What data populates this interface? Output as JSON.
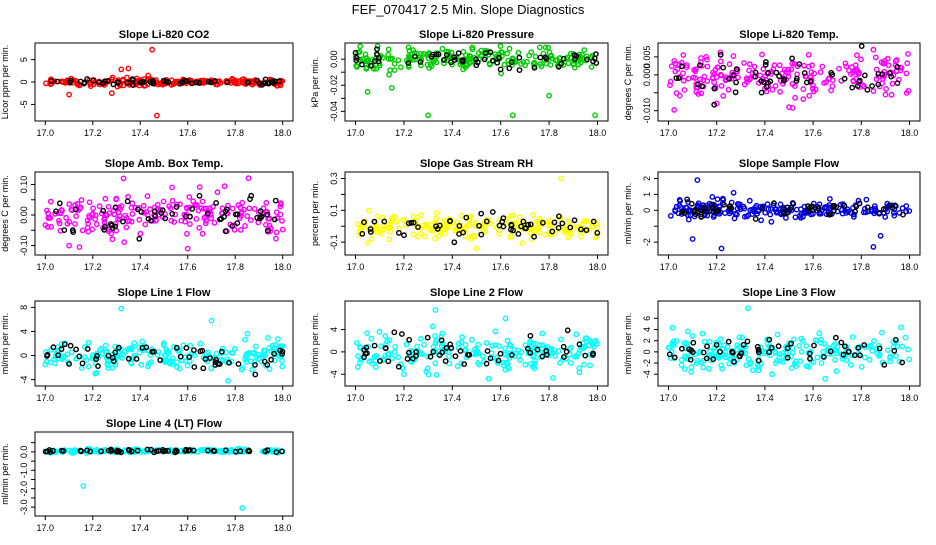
{
  "page": {
    "title": "FEF_070417  2.5 Min. Slope Diagnostics"
  },
  "chart_data": [
    {
      "type": "scatter",
      "title": "Slope Li-820 CO2",
      "ylabel": "Licor ppm per min.",
      "xlim": [
        17.0,
        18.0
      ],
      "ylim": [
        -8,
        8
      ],
      "xticks": [
        "17.0",
        "17.2",
        "17.4",
        "17.6",
        "17.8",
        "18.0"
      ],
      "yticks": [
        -5,
        0,
        5
      ],
      "ytick_labels": [
        "-5",
        "0",
        "5"
      ],
      "color": "#ff0000",
      "noise": 0.3,
      "spread": 1.0,
      "seed": 11,
      "outliers": [
        [
          17.45,
          7.2
        ],
        [
          17.47,
          -7.5
        ],
        [
          17.32,
          2.8
        ],
        [
          17.28,
          -2.5
        ],
        [
          17.35,
          3.0
        ],
        [
          17.1,
          -2.8
        ]
      ]
    },
    {
      "type": "scatter",
      "title": "Slope Li-820 Pressure",
      "ylabel": "kPa per min.",
      "xlim": [
        17.0,
        18.0
      ],
      "ylim": [
        -0.045,
        0.01
      ],
      "xticks": [
        "17.0",
        "17.2",
        "17.4",
        "17.6",
        "17.8",
        "18.0"
      ],
      "yticks": [
        -0.04,
        -0.03,
        -0.02,
        -0.01,
        0
      ],
      "ytick_labels": [
        "-0.04",
        "",
        "-0.02",
        "",
        "0.00"
      ],
      "color": "#00cc00",
      "noise": 0.004,
      "spread": 0.0,
      "seed": 22,
      "outliers": [
        [
          17.65,
          -0.043
        ],
        [
          17.99,
          -0.043
        ],
        [
          17.3,
          -0.043
        ],
        [
          17.8,
          -0.028
        ],
        [
          17.05,
          -0.025
        ],
        [
          17.15,
          -0.022
        ]
      ]
    },
    {
      "type": "scatter",
      "title": "Slope Li-820 Temp.",
      "ylabel": "degrees C per min.",
      "xlim": [
        17.0,
        18.0
      ],
      "ylim": [
        -0.012,
        0.008
      ],
      "xticks": [
        "17.0",
        "17.2",
        "17.4",
        "17.6",
        "17.8",
        "18.0"
      ],
      "yticks": [
        -0.01,
        -0.005,
        0,
        0.005
      ],
      "ytick_labels": [
        "-0.010",
        "",
        "0.000",
        "0.005"
      ],
      "color": "#ff00ff",
      "noise": 0.003,
      "spread": 0.0,
      "seed": 33,
      "outliers": [
        [
          17.2,
          -0.008
        ],
        [
          17.5,
          -0.009
        ],
        [
          17.85,
          0.007
        ]
      ]
    },
    {
      "type": "scatter",
      "title": "Slope Amb. Box Temp.",
      "ylabel": "degrees C per min.",
      "xlim": [
        17.0,
        18.0
      ],
      "ylim": [
        -0.12,
        0.13
      ],
      "xticks": [
        "17.0",
        "17.2",
        "17.4",
        "17.6",
        "17.8",
        "18.0"
      ],
      "yticks": [
        -0.1,
        -0.05,
        0,
        0.05,
        0.1
      ],
      "ytick_labels": [
        "-0.10",
        "",
        "0.00",
        "",
        "0.10"
      ],
      "color": "#ff00ff",
      "noise": 0.035,
      "spread": 0.0,
      "seed": 44,
      "outliers": [
        [
          17.33,
          0.12
        ],
        [
          17.1,
          -0.1
        ],
        [
          17.6,
          -0.11
        ]
      ]
    },
    {
      "type": "scatter",
      "title": "Slope Gas Stream RH",
      "ylabel": "percent per min.",
      "xlim": [
        17.0,
        18.0
      ],
      "ylim": [
        -0.16,
        0.32
      ],
      "xticks": [
        "17.0",
        "17.2",
        "17.4",
        "17.6",
        "17.8",
        "18.0"
      ],
      "yticks": [
        -0.1,
        0,
        0.1,
        0.2,
        0.3
      ],
      "ytick_labels": [
        "-0.1",
        "",
        "0.1",
        "",
        "0.3"
      ],
      "color": "#ffff00",
      "noise": 0.04,
      "spread": 0.0,
      "seed": 55,
      "outliers": [
        [
          17.85,
          0.3
        ],
        [
          17.5,
          -0.14
        ]
      ]
    },
    {
      "type": "scatter",
      "title": "Slope Sample Flow",
      "ylabel": "ml/min per min.",
      "xlim": [
        17.0,
        18.0
      ],
      "ylim": [
        -2.6,
        2.2
      ],
      "xticks": [
        "17.0",
        "17.2",
        "17.4",
        "17.6",
        "17.8",
        "18.0"
      ],
      "yticks": [
        -2,
        -1,
        0,
        1,
        2
      ],
      "ytick_labels": [
        "-2",
        "",
        "0",
        "1",
        "2"
      ],
      "color": "#0000dd",
      "noise": 0.25,
      "spread": 0.8,
      "seed": 66,
      "outliers": [
        [
          17.12,
          1.9
        ],
        [
          17.22,
          -2.4
        ],
        [
          17.1,
          -1.8
        ],
        [
          17.27,
          1.1
        ],
        [
          17.85,
          -2.3
        ],
        [
          17.88,
          -1.6
        ]
      ]
    },
    {
      "type": "scatter",
      "title": "Slope Line 1 Flow",
      "ylabel": "ml/min per min.",
      "xlim": [
        17.0,
        18.0
      ],
      "ylim": [
        -4.5,
        8.5
      ],
      "xticks": [
        "17.0",
        "17.2",
        "17.4",
        "17.6",
        "17.8",
        "18.0"
      ],
      "yticks": [
        -4,
        0,
        4,
        8
      ],
      "ytick_labels": [
        "-4",
        "0",
        "4",
        "8"
      ],
      "color": "#00ffff",
      "noise": 1.3,
      "spread": 0.0,
      "seed": 77,
      "outliers": [
        [
          17.32,
          7.8
        ],
        [
          17.77,
          -4.2
        ],
        [
          17.7,
          5.8
        ]
      ]
    },
    {
      "type": "scatter",
      "title": "Slope Line 2 Flow",
      "ylabel": "ml/min per min.",
      "xlim": [
        17.0,
        18.0
      ],
      "ylim": [
        -5.5,
        8.5
      ],
      "xticks": [
        "17.0",
        "17.2",
        "17.4",
        "17.6",
        "17.8",
        "18.0"
      ],
      "yticks": [
        -4,
        0,
        4
      ],
      "ytick_labels": [
        "-4",
        "0",
        "4"
      ],
      "color": "#00ffff",
      "noise": 1.6,
      "spread": 0.0,
      "seed": 88,
      "outliers": [
        [
          17.33,
          7.5
        ],
        [
          17.62,
          6.0
        ],
        [
          17.55,
          -4.8
        ],
        [
          17.2,
          -4.0
        ]
      ]
    },
    {
      "type": "scatter",
      "title": "Slope Line 3 Flow",
      "ylabel": "ml/min per min.",
      "xlim": [
        17.0,
        18.0
      ],
      "ylim": [
        -5.5,
        8.5
      ],
      "xticks": [
        "17.0",
        "17.2",
        "17.4",
        "17.6",
        "17.8",
        "18.0"
      ],
      "yticks": [
        -4,
        -2,
        0,
        2,
        4,
        6
      ],
      "ytick_labels": [
        "-4",
        "-2",
        "0",
        "2",
        "4",
        "6"
      ],
      "color": "#00ffff",
      "noise": 1.5,
      "spread": 0.0,
      "seed": 99,
      "outliers": [
        [
          17.33,
          7.8
        ],
        [
          17.65,
          -4.8
        ],
        [
          17.43,
          -4.0
        ]
      ]
    },
    {
      "type": "scatter",
      "title": "Slope Line 4 (LT) Flow",
      "ylabel": "ml/min per min.",
      "xlim": [
        17.0,
        18.0
      ],
      "ylim": [
        -3.3,
        0.9
      ],
      "xticks": [
        "17.0",
        "17.2",
        "17.4",
        "17.6",
        "17.8",
        "18.0"
      ],
      "yticks": [
        -3.0,
        -2.5,
        -2.0,
        -1.5,
        -1.0,
        -0.5,
        0.0,
        0.5
      ],
      "ytick_labels": [
        "-3.0",
        "",
        "-2.0",
        "",
        "-1.0",
        "",
        "0.0",
        ""
      ],
      "color": "#00ffff",
      "noise": 0.04,
      "spread": 0.0,
      "seed": 111,
      "outliers": [
        [
          17.16,
          -1.85
        ],
        [
          17.83,
          -3.05
        ]
      ]
    }
  ]
}
